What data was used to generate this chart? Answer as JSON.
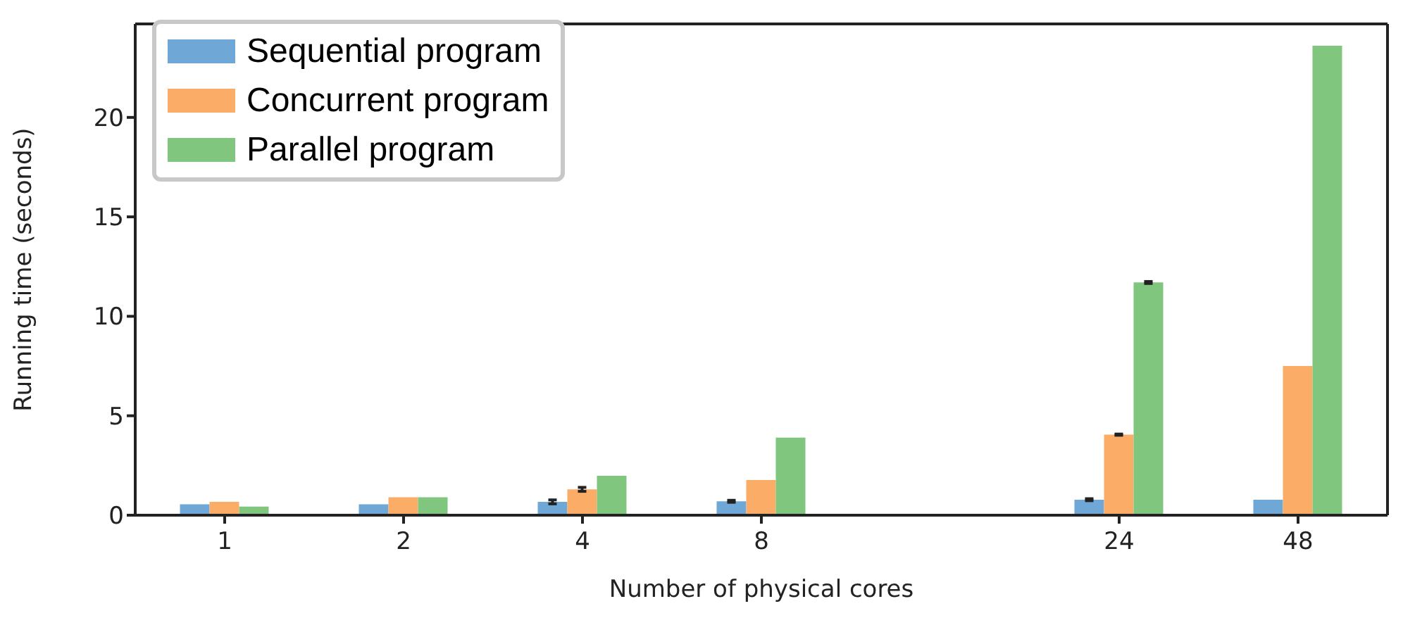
{
  "chart_data": {
    "type": "bar",
    "xlabel": "Number of physical cores",
    "ylabel": "Running time (seconds)",
    "categories": [
      "1",
      "2",
      "4",
      "8",
      null,
      "24",
      "48"
    ],
    "series": [
      {
        "name": "Sequential program",
        "color": "#6fa8d6",
        "values": [
          0.55,
          0.55,
          0.67,
          0.7,
          null,
          0.78,
          0.78
        ],
        "errors": [
          null,
          null,
          0.1,
          0.05,
          null,
          0.05,
          null
        ]
      },
      {
        "name": "Concurrent program",
        "color": "#fbad67",
        "values": [
          0.67,
          0.9,
          1.3,
          1.77,
          null,
          4.05,
          7.5
        ],
        "errors": [
          null,
          null,
          0.1,
          null,
          null,
          0.03,
          null
        ]
      },
      {
        "name": "Parallel program",
        "color": "#80c67e",
        "values": [
          0.43,
          0.9,
          1.98,
          3.9,
          null,
          11.7,
          23.6
        ],
        "errors": [
          null,
          null,
          null,
          null,
          null,
          0.05,
          null
        ]
      }
    ],
    "ylim": [
      0,
      24.7
    ],
    "yticks": [
      0,
      5,
      10,
      15,
      20
    ],
    "legend": "top left",
    "grid": false
  }
}
